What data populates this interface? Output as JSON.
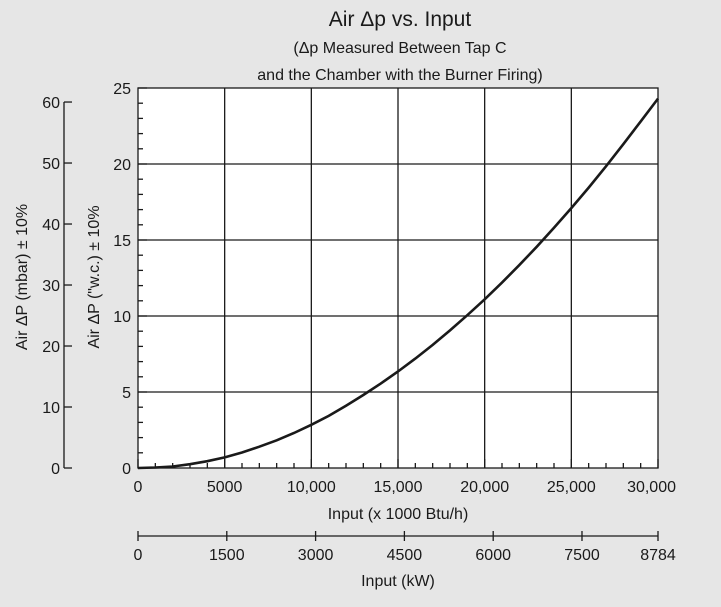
{
  "chart_data": {
    "type": "line",
    "title": "Air Δp vs. Input",
    "subtitle_lines": [
      "(Δp Measured Between Tap C",
      "and the Chamber with the Burner Firing)"
    ],
    "xlabel": "Input (x 1000 Btu/h)",
    "x2label": "Input (kW)",
    "ylabel": "Air ΔP (\"w.c.) ± 10%",
    "y2label": "Air ΔP (mbar) ± 10%",
    "xlim": [
      0,
      30000
    ],
    "ylim": [
      0,
      25
    ],
    "y2lim": [
      0,
      62.3
    ],
    "grid": true,
    "x_ticks": [
      0,
      5000,
      10000,
      15000,
      20000,
      25000,
      30000
    ],
    "x_tick_labels": [
      "0",
      "5000",
      "10,000",
      "15,000",
      "20,000",
      "25,000",
      "30,000"
    ],
    "y_ticks": [
      0,
      5,
      10,
      15,
      20,
      25
    ],
    "y_tick_labels": [
      "0",
      "5",
      "10",
      "15",
      "20",
      "25"
    ],
    "y2_ticks": [
      0,
      10,
      20,
      30,
      40,
      50,
      60
    ],
    "y2_tick_labels": [
      "0",
      "10",
      "20",
      "30",
      "40",
      "50",
      "60"
    ],
    "x2_ticks": [
      0,
      1500,
      3000,
      4500,
      6000,
      7500,
      8784
    ],
    "x2_tick_labels": [
      "0",
      "1500",
      "3000",
      "4500",
      "6000",
      "7500",
      "8784"
    ],
    "series": [
      {
        "x": [
          0,
          1000,
          2000,
          3000,
          4000,
          5000,
          6000,
          7000,
          8000,
          9000,
          10000,
          11000,
          12000,
          13000,
          14000,
          15000,
          16000,
          17000,
          18000,
          19000,
          20000,
          21000,
          22000,
          23000,
          24000,
          25000,
          26000,
          27000,
          28000,
          29000,
          30000
        ],
        "values": [
          0,
          0.03,
          0.1,
          0.25,
          0.45,
          0.7,
          1.02,
          1.4,
          1.82,
          2.3,
          2.84,
          3.43,
          4.1,
          4.8,
          5.55,
          6.35,
          7.2,
          8.1,
          9.05,
          10.05,
          11.1,
          12.2,
          13.35,
          14.55,
          15.8,
          17.1,
          18.45,
          19.85,
          21.3,
          22.8,
          24.3
        ]
      }
    ]
  }
}
